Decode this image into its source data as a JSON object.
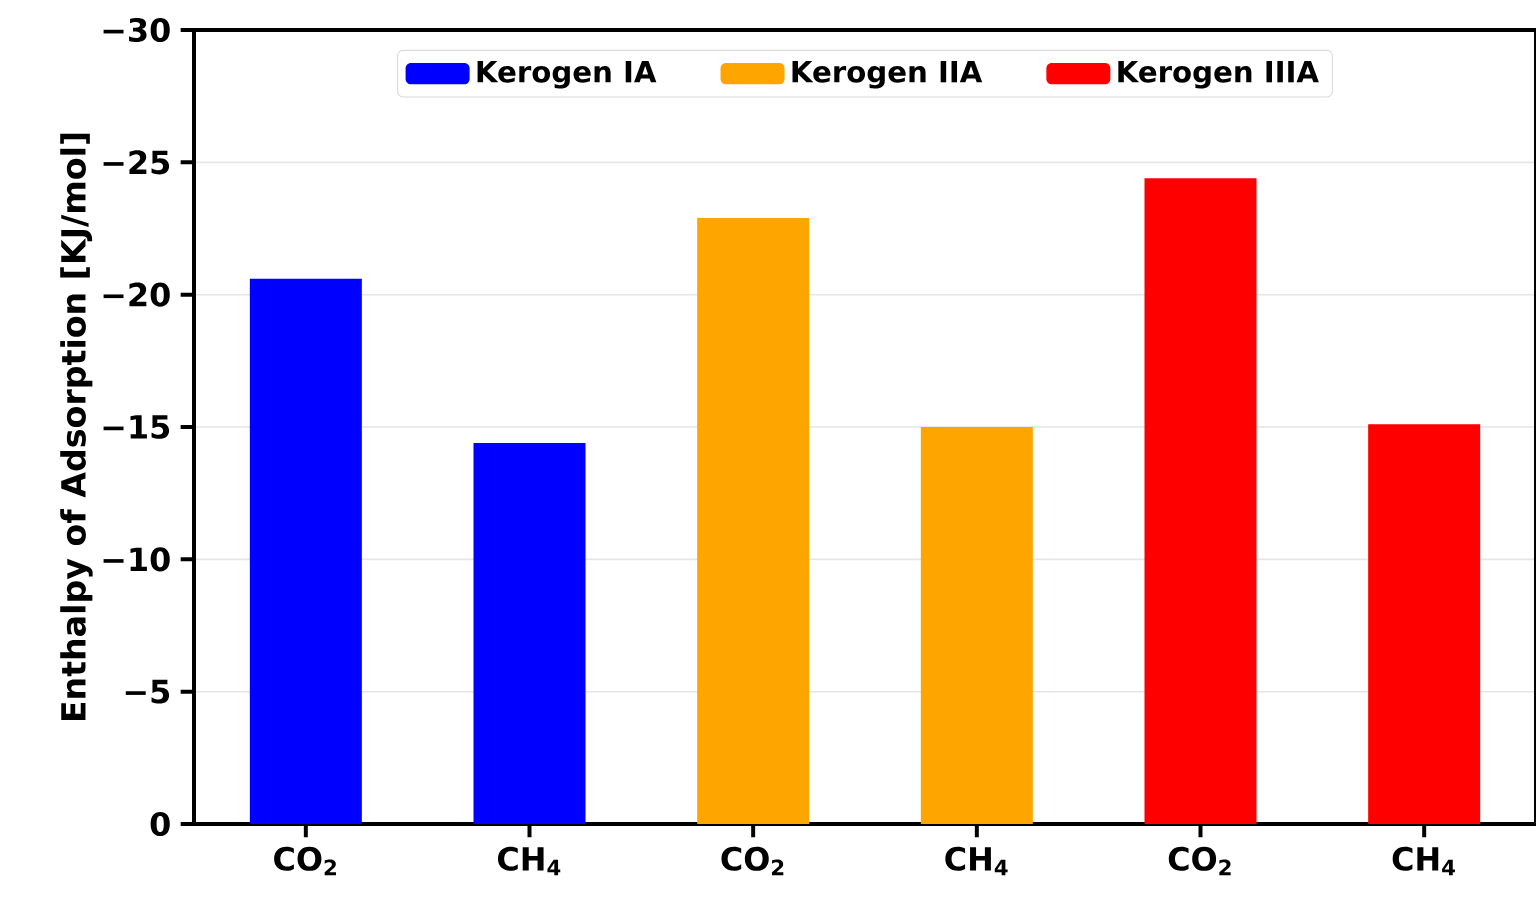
{
  "chart_data": {
    "type": "bar",
    "ylabel": "Enthalpy of Adsorption [KJ/mol]",
    "categories": [
      "CO$_{2}$",
      "CH$_{4}$",
      "CO$_{2}$",
      "CH$_{4}$",
      "CO$_{2}$",
      "CH$_{4}$"
    ],
    "series": [
      {
        "name": "Kerogen IA",
        "color": "#0000ff",
        "values": [
          -20.6,
          -14.4,
          null,
          null,
          null,
          null
        ]
      },
      {
        "name": "Kerogen IIA",
        "color": "#ffa500",
        "values": [
          null,
          null,
          -22.9,
          -15.0,
          null,
          null
        ]
      },
      {
        "name": "Kerogen IIIA",
        "color": "#ff0000",
        "values": [
          null,
          null,
          null,
          null,
          -24.4,
          -15.1
        ]
      }
    ],
    "ylim": [
      0,
      -30
    ],
    "yticks": [
      0,
      {
        "value": -5,
        "label": "−5"
      },
      {
        "value": -10,
        "label": "−10"
      },
      {
        "value": -15,
        "label": "−15"
      },
      {
        "value": -20,
        "label": "−20"
      },
      {
        "value": -25,
        "label": "−25"
      },
      {
        "value": -30,
        "label": "−30"
      }
    ],
    "grid": "y",
    "legend": "top"
  }
}
